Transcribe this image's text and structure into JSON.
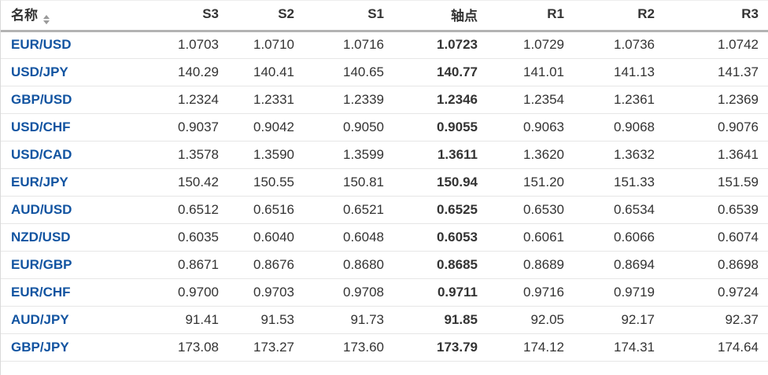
{
  "table": {
    "name_header": "名称",
    "columns": [
      "S3",
      "S2",
      "S1",
      "轴点",
      "R1",
      "R2",
      "R3"
    ],
    "pivot_column_index": 3,
    "rows": [
      {
        "pair": "EUR/USD",
        "values": [
          "1.0703",
          "1.0710",
          "1.0716",
          "1.0723",
          "1.0729",
          "1.0736",
          "1.0742"
        ]
      },
      {
        "pair": "USD/JPY",
        "values": [
          "140.29",
          "140.41",
          "140.65",
          "140.77",
          "141.01",
          "141.13",
          "141.37"
        ]
      },
      {
        "pair": "GBP/USD",
        "values": [
          "1.2324",
          "1.2331",
          "1.2339",
          "1.2346",
          "1.2354",
          "1.2361",
          "1.2369"
        ]
      },
      {
        "pair": "USD/CHF",
        "values": [
          "0.9037",
          "0.9042",
          "0.9050",
          "0.9055",
          "0.9063",
          "0.9068",
          "0.9076"
        ]
      },
      {
        "pair": "USD/CAD",
        "values": [
          "1.3578",
          "1.3590",
          "1.3599",
          "1.3611",
          "1.3620",
          "1.3632",
          "1.3641"
        ]
      },
      {
        "pair": "EUR/JPY",
        "values": [
          "150.42",
          "150.55",
          "150.81",
          "150.94",
          "151.20",
          "151.33",
          "151.59"
        ]
      },
      {
        "pair": "AUD/USD",
        "values": [
          "0.6512",
          "0.6516",
          "0.6521",
          "0.6525",
          "0.6530",
          "0.6534",
          "0.6539"
        ]
      },
      {
        "pair": "NZD/USD",
        "values": [
          "0.6035",
          "0.6040",
          "0.6048",
          "0.6053",
          "0.6061",
          "0.6066",
          "0.6074"
        ]
      },
      {
        "pair": "EUR/GBP",
        "values": [
          "0.8671",
          "0.8676",
          "0.8680",
          "0.8685",
          "0.8689",
          "0.8694",
          "0.8698"
        ]
      },
      {
        "pair": "EUR/CHF",
        "values": [
          "0.9700",
          "0.9703",
          "0.9708",
          "0.9711",
          "0.9716",
          "0.9719",
          "0.9724"
        ]
      },
      {
        "pair": "AUD/JPY",
        "values": [
          "91.41",
          "91.53",
          "91.73",
          "91.85",
          "92.05",
          "92.17",
          "92.37"
        ]
      },
      {
        "pair": "GBP/JPY",
        "values": [
          "173.08",
          "173.27",
          "173.60",
          "173.79",
          "174.12",
          "174.31",
          "174.64"
        ]
      }
    ],
    "colors": {
      "link_blue": "#1254a1",
      "text": "#333333",
      "header_border": "#b3b3b3",
      "row_border": "#e6e6e6",
      "sort_icon_gray": "#9a9a9a"
    }
  }
}
